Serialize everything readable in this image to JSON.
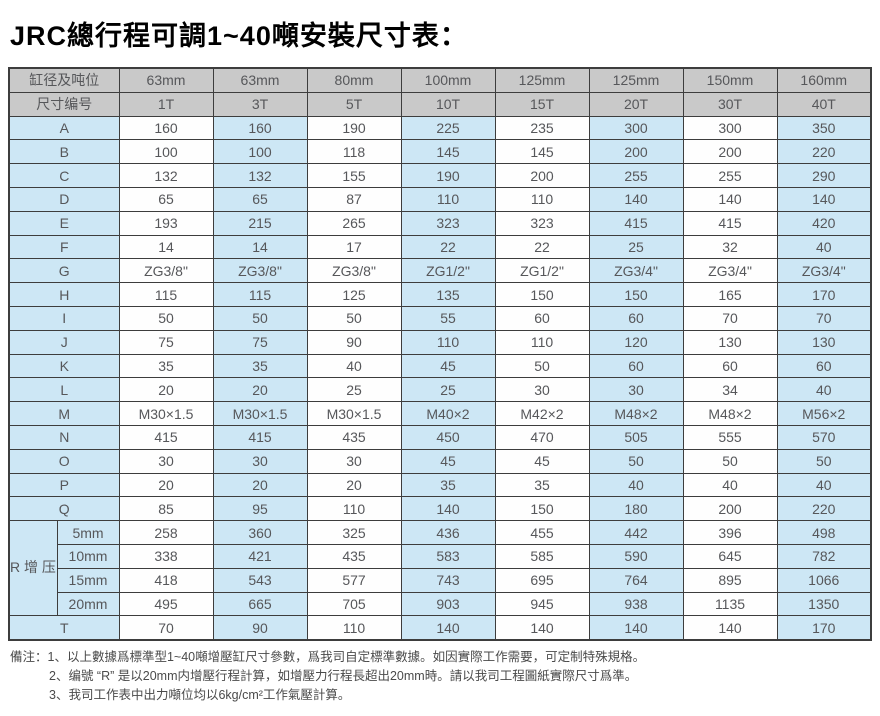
{
  "title": "JRC總行程可調1~40噸安裝尺寸表：",
  "table": {
    "header_row1_label": "缸径及吨位",
    "header_row2_label": "尺寸编号",
    "bores": [
      "63mm",
      "63mm",
      "80mm",
      "100mm",
      "125mm",
      "125mm",
      "150mm",
      "160mm"
    ],
    "tonnages": [
      "1T",
      "3T",
      "5T",
      "10T",
      "15T",
      "20T",
      "30T",
      "40T"
    ],
    "rows": [
      {
        "label": "A",
        "values": [
          "160",
          "160",
          "190",
          "225",
          "235",
          "300",
          "300",
          "350"
        ]
      },
      {
        "label": "B",
        "values": [
          "100",
          "100",
          "118",
          "145",
          "145",
          "200",
          "200",
          "220"
        ]
      },
      {
        "label": "C",
        "values": [
          "132",
          "132",
          "155",
          "190",
          "200",
          "255",
          "255",
          "290"
        ]
      },
      {
        "label": "D",
        "values": [
          "65",
          "65",
          "87",
          "110",
          "110",
          "140",
          "140",
          "140"
        ]
      },
      {
        "label": "E",
        "values": [
          "193",
          "215",
          "265",
          "323",
          "323",
          "415",
          "415",
          "420"
        ]
      },
      {
        "label": "F",
        "values": [
          "14",
          "14",
          "17",
          "22",
          "22",
          "25",
          "32",
          "40"
        ]
      },
      {
        "label": "G",
        "values": [
          "ZG3/8\"",
          "ZG3/8\"",
          "ZG3/8\"",
          "ZG1/2\"",
          "ZG1/2\"",
          "ZG3/4\"",
          "ZG3/4\"",
          "ZG3/4\""
        ]
      },
      {
        "label": "H",
        "values": [
          "115",
          "115",
          "125",
          "135",
          "150",
          "150",
          "165",
          "170"
        ]
      },
      {
        "label": "I",
        "values": [
          "50",
          "50",
          "50",
          "55",
          "60",
          "60",
          "70",
          "70"
        ]
      },
      {
        "label": "J",
        "values": [
          "75",
          "75",
          "90",
          "110",
          "110",
          "120",
          "130",
          "130"
        ]
      },
      {
        "label": "K",
        "values": [
          "35",
          "35",
          "40",
          "45",
          "50",
          "60",
          "60",
          "60"
        ]
      },
      {
        "label": "L",
        "values": [
          "20",
          "20",
          "25",
          "25",
          "30",
          "30",
          "34",
          "40"
        ]
      },
      {
        "label": "M",
        "values": [
          "M30×1.5",
          "M30×1.5",
          "M30×1.5",
          "M40×2",
          "M42×2",
          "M48×2",
          "M48×2",
          "M56×2"
        ]
      },
      {
        "label": "N",
        "values": [
          "415",
          "415",
          "435",
          "450",
          "470",
          "505",
          "555",
          "570"
        ]
      },
      {
        "label": "O",
        "values": [
          "30",
          "30",
          "30",
          "45",
          "45",
          "50",
          "50",
          "50"
        ]
      },
      {
        "label": "P",
        "values": [
          "20",
          "20",
          "20",
          "35",
          "35",
          "40",
          "40",
          "40"
        ]
      },
      {
        "label": "Q",
        "values": [
          "85",
          "95",
          "110",
          "140",
          "150",
          "180",
          "200",
          "220"
        ]
      }
    ],
    "r_section": {
      "label": "R增压行程",
      "label_chars": [
        "R",
        "增",
        "压",
        "行",
        "程"
      ],
      "sub_rows": [
        {
          "label": "5mm",
          "values": [
            "258",
            "360",
            "325",
            "436",
            "455",
            "442",
            "396",
            "498"
          ]
        },
        {
          "label": "10mm",
          "values": [
            "338",
            "421",
            "435",
            "583",
            "585",
            "590",
            "645",
            "782"
          ]
        },
        {
          "label": "15mm",
          "values": [
            "418",
            "543",
            "577",
            "743",
            "695",
            "764",
            "895",
            "1066"
          ]
        },
        {
          "label": "20mm",
          "values": [
            "495",
            "665",
            "705",
            "903",
            "945",
            "938",
            "1135",
            "1350"
          ]
        }
      ]
    },
    "t_row": {
      "label": "T",
      "values": [
        "70",
        "90",
        "110",
        "140",
        "140",
        "140",
        "140",
        "170"
      ]
    }
  },
  "notes": {
    "prefix": "備注：",
    "items": [
      "1、以上數據爲標準型1~40噸增壓缸尺寸參數，爲我司自定標準數據。如因實際工作需要，可定制特殊規格。",
      "2、编號 “R” 是以20mm内增壓行程計算，如增壓力行程長超出20mm時。請以我司工程圖紙實際尺寸爲準。",
      "3、我司工作表中出力噸位均以6kg/cm²工作氣壓計算。"
    ]
  },
  "colors": {
    "header_bg": "#c9c9c9",
    "cell_blue": "#cde7f5",
    "cell_white": "#fefefe",
    "border": "#3d3d3d",
    "title_text": "#000000",
    "value_text": "#56575a"
  }
}
